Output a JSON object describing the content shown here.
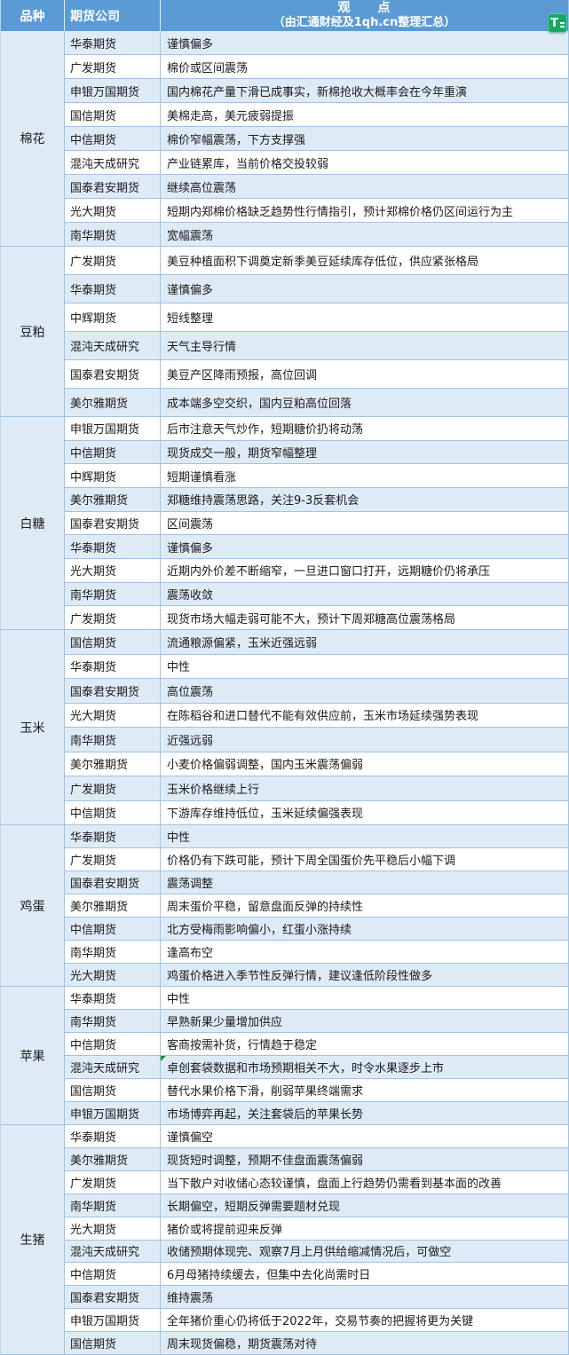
{
  "colors": {
    "header_blue": "#5B9BD5",
    "band_blue": "#DEEBF7",
    "grid_blue": "#9DC3E6",
    "tool_icon_green": "#17A964",
    "cell_marker_green": "#1E8E3E"
  },
  "header": {
    "col_variety": "品种",
    "col_company": "期货公司",
    "view_title": "观　　点",
    "view_subtitle": "（由汇通财经及1qh.cn整理汇总）"
  },
  "tool_icon": {
    "glyph": "T",
    "name": "green-T-tool"
  },
  "sections": [
    {
      "variety": "棉花",
      "rows": [
        {
          "company": "华泰期货",
          "view": "谨慎偏多"
        },
        {
          "company": "广发期货",
          "view": "棉价或区间震荡"
        },
        {
          "company": "申银万国期货",
          "view": "国内棉花产量下滑已成事实，新棉抢收大概率会在今年重演"
        },
        {
          "company": "国信期货",
          "view": "美棉走高，美元疲弱提振"
        },
        {
          "company": "中信期货",
          "view": "棉价窄幅震荡，下方支撑强"
        },
        {
          "company": "混沌天成研究",
          "view": "产业链累库，当前价格交投较弱"
        },
        {
          "company": "国泰君安期货",
          "view": "继续高位震荡"
        },
        {
          "company": "光大期货",
          "view": "短期内郑棉价格缺乏趋势性行情指引，预计郑棉价格仍区间运行为主"
        },
        {
          "company": "南华期货",
          "view": "宽幅震荡"
        }
      ]
    },
    {
      "variety": "豆粕",
      "rows": [
        {
          "company": "广发期货",
          "view": "美豆种植面积下调奠定新季美豆延续库存低位，供应紧张格局"
        },
        {
          "company": "华泰期货",
          "view": "谨慎偏多"
        },
        {
          "company": "中辉期货",
          "view": "短线整理"
        },
        {
          "company": "混沌天成研究",
          "view": "天气主导行情"
        },
        {
          "company": "国泰君安期货",
          "view": "美豆产区降雨预报，高位回调"
        },
        {
          "company": "美尔雅期货",
          "view": "成本端多空交织，国内豆粕高位回落"
        }
      ]
    },
    {
      "variety": "白糖",
      "rows": [
        {
          "company": "申银万国期货",
          "view": "后市注意天气炒作，短期糖价扔将动荡"
        },
        {
          "company": "中信期货",
          "view": "现货成交一般，期货窄幅整理"
        },
        {
          "company": "中辉期货",
          "view": "短期谨慎看涨"
        },
        {
          "company": "美尔雅期货",
          "view": "郑糖维持震荡思路，关注9-3反套机会"
        },
        {
          "company": "国泰君安期货",
          "view": "区间震荡"
        },
        {
          "company": "华泰期货",
          "view": "谨慎偏多"
        },
        {
          "company": "光大期货",
          "view": "近期内外价差不断缩窄，一旦进口窗口打开，远期糖价仍将承压"
        },
        {
          "company": "南华期货",
          "view": "震荡收敛"
        },
        {
          "company": "广发期货",
          "view": "现货市场大幅走弱可能不大，预计下周郑糖高位震荡格局"
        }
      ]
    },
    {
      "variety": "玉米",
      "rows": [
        {
          "company": "国信期货",
          "view": "流通粮源偏紧，玉米近强远弱"
        },
        {
          "company": "华泰期货",
          "view": "中性"
        },
        {
          "company": "国泰君安期货",
          "view": "高位震荡"
        },
        {
          "company": "光大期货",
          "view": "在陈稻谷和进口替代不能有效供应前，玉米市场延续强势表现"
        },
        {
          "company": "南华期货",
          "view": "近强远弱"
        },
        {
          "company": "美尔雅期货",
          "view": "小麦价格偏弱调整，国内玉米震荡偏弱"
        },
        {
          "company": "广发期货",
          "view": "玉米价格继续上行"
        },
        {
          "company": "中信期货",
          "view": "下游库存维持低位，玉米延续偏强表现"
        }
      ]
    },
    {
      "variety": "鸡蛋",
      "rows": [
        {
          "company": "华泰期货",
          "view": "中性"
        },
        {
          "company": "广发期货",
          "view": "价格仍有下跌可能，预计下周全国蛋价先平稳后小幅下调"
        },
        {
          "company": "国泰君安期货",
          "view": "震荡调整"
        },
        {
          "company": "美尔雅期货",
          "view": "周末蛋价平稳，留意盘面反弹的持续性"
        },
        {
          "company": "中信期货",
          "view": "北方受梅雨影响偏小，红蛋小涨持续"
        },
        {
          "company": "南华期货",
          "view": "逢高布空"
        },
        {
          "company": "光大期货",
          "view": "鸡蛋价格进入季节性反弹行情，建议逢低阶段性做多"
        }
      ]
    },
    {
      "variety": "苹果",
      "rows": [
        {
          "company": "华泰期货",
          "view": "中性"
        },
        {
          "company": "南华期货",
          "view": "早熟新果少量增加供应"
        },
        {
          "company": "中信期货",
          "view": "客商按需补货，行情趋于稳定"
        },
        {
          "company": "混沌天成研究",
          "view": "卓创套袋数据和市场预期相关不大，时令水果逐步上市",
          "marker": true
        },
        {
          "company": "国信期货",
          "view": "替代水果价格下滑，削弱苹果终端需求"
        },
        {
          "company": "申银万国期货",
          "view": "市场博弈再起，关注套袋后的苹果长势"
        }
      ]
    },
    {
      "variety": "生猪",
      "rows": [
        {
          "company": "华泰期货",
          "view": "谨慎偏空"
        },
        {
          "company": "美尔雅期货",
          "view": "现货短时调整，预期不佳盘面震荡偏弱"
        },
        {
          "company": "广发期货",
          "view": "当下散户对收储心态较谨慎，盘面上行趋势仍需看到基本面的改善"
        },
        {
          "company": "南华期货",
          "view": "长期偏空，短期反弹需要题材兑现"
        },
        {
          "company": "光大期货",
          "view": "猪价或将提前迎来反弹"
        },
        {
          "company": "混沌天成研究",
          "view": "收储预期体现完、观察7月上月供给缩减情况后，可做空"
        },
        {
          "company": "中信期货",
          "view": "6月母猪持续缓去，但集中去化尚需时日"
        },
        {
          "company": "国泰君安期货",
          "view": "维持震荡"
        },
        {
          "company": "申银万国期货",
          "view": "全年猪价重心仍将低于2022年，交易节奏的把握将更为关键"
        },
        {
          "company": "国信期货",
          "view": "周末现货偏稳，期货震荡对待"
        }
      ]
    }
  ]
}
